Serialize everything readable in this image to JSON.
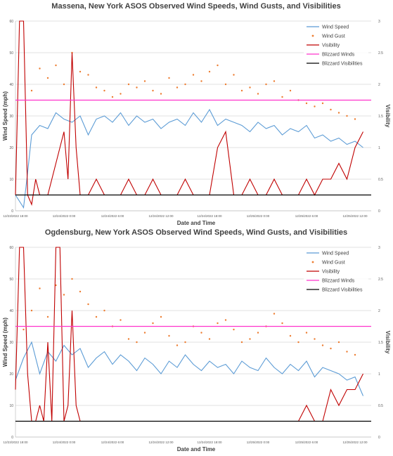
{
  "chart_data": [
    {
      "type": "line",
      "title": "Massena, New York ASOS Observed Wind Speeds, Wind Gusts, and Visibilities",
      "xlabel": "Date and Time",
      "ylabel": "Wind Speed (mph)",
      "y2label": "Visibility",
      "ylim": [
        0,
        60
      ],
      "y2lim": [
        0,
        3
      ],
      "xticks": [
        "12/23/2022 18:00",
        "12/24/2022 0:00",
        "12/24/2022 6:00",
        "12/24/2022 12:00",
        "12/24/2022 18:00",
        "12/25/2022 0:00",
        "12/25/2022 6:00",
        "12/25/2022 12:00"
      ],
      "yticks": [
        "0",
        "10",
        "20",
        "30",
        "40",
        "50",
        "60"
      ],
      "y2ticks": [
        "0",
        "0.5",
        "1",
        "1.5",
        "2",
        "2.5",
        "3"
      ],
      "grid": "horizontal",
      "legend_position": "top-right",
      "series": [
        {
          "name": "Wind Speed",
          "kind": "line",
          "color": "#5b9bd5",
          "x": [
            0,
            0.5,
            1,
            1.5,
            2,
            3,
            4,
            5,
            6,
            7,
            8,
            9,
            10,
            11,
            12,
            13,
            14,
            15,
            16,
            17,
            18,
            19,
            20,
            21,
            22,
            23,
            24,
            25,
            26,
            27,
            28,
            29,
            30,
            31,
            32,
            33,
            34,
            35,
            36,
            37,
            38,
            39,
            40,
            41,
            42,
            43
          ],
          "values": [
            5,
            3,
            1,
            12,
            24,
            27,
            26,
            31,
            29,
            28,
            30,
            24,
            29,
            30,
            28,
            31,
            27,
            30,
            28,
            29,
            26,
            28,
            29,
            27,
            31,
            28,
            32,
            27,
            29,
            28,
            27,
            25,
            28,
            26,
            27,
            24,
            26,
            25,
            27,
            23,
            24,
            22,
            23,
            21,
            22,
            20
          ]
        },
        {
          "name": "Wind Gust",
          "kind": "scatter",
          "color": "#ed7d31",
          "x": [
            2,
            3,
            4,
            5,
            6,
            7,
            8,
            9,
            10,
            11,
            12,
            13,
            14,
            15,
            16,
            17,
            18,
            19,
            20,
            21,
            22,
            23,
            24,
            25,
            26,
            27,
            28,
            29,
            30,
            31,
            32,
            33,
            34,
            35,
            36,
            37,
            38,
            39,
            40,
            41,
            42
          ],
          "values": [
            38,
            45,
            42,
            46,
            40,
            50,
            44,
            43,
            39,
            38,
            36,
            37,
            40,
            39,
            41,
            38,
            37,
            42,
            39,
            40,
            43,
            41,
            44,
            46,
            40,
            43,
            38,
            39,
            37,
            40,
            41,
            36,
            38,
            35,
            34,
            33,
            34,
            32,
            31,
            30,
            29
          ]
        },
        {
          "name": "Visibility",
          "kind": "line",
          "axis": "y2",
          "color": "#c00000",
          "x": [
            0,
            0.5,
            1,
            1.5,
            2,
            2.5,
            3,
            4,
            5,
            6,
            6.5,
            7,
            7.5,
            8,
            9,
            10,
            11,
            12,
            13,
            14,
            15,
            16,
            17,
            18,
            19,
            20,
            21,
            22,
            23,
            24,
            25,
            26,
            27,
            28,
            29,
            30,
            31,
            32,
            33,
            34,
            35,
            36,
            37,
            38,
            39,
            40,
            41,
            42,
            43
          ],
          "values": [
            0.25,
            3,
            3,
            0.25,
            0.1,
            0.5,
            0.25,
            0.25,
            0.75,
            1.25,
            0.5,
            2.5,
            1.0,
            0.25,
            0.25,
            0.5,
            0.25,
            0.25,
            0.25,
            0.5,
            0.25,
            0.25,
            0.5,
            0.25,
            0.25,
            0.25,
            0.5,
            0.25,
            0.25,
            0.25,
            1.0,
            1.25,
            0.25,
            0.25,
            0.5,
            0.25,
            0.25,
            0.5,
            0.25,
            0.25,
            0.25,
            0.5,
            0.25,
            0.5,
            0.5,
            0.75,
            0.5,
            1.0,
            1.25
          ]
        },
        {
          "name": "Blizzard Winds",
          "kind": "hline",
          "color": "#ff33cc",
          "value": 35
        },
        {
          "name": "Blizzard Visibilities",
          "kind": "hline",
          "axis": "y2",
          "color": "#000000",
          "value": 0.25
        }
      ]
    },
    {
      "type": "line",
      "title": "Ogdensburg, New York ASOS Observed Wind Speeds, Wind Gusts, and Visibilities",
      "xlabel": "Date and Time",
      "ylabel": "Wind Speed (mph)",
      "y2label": "Visibility",
      "ylim": [
        0,
        60
      ],
      "y2lim": [
        0,
        3
      ],
      "xticks": [
        "12/23/2022 18:00",
        "12/24/2022 0:00",
        "12/24/2022 6:00",
        "12/24/2022 12:00",
        "12/24/2022 18:00",
        "12/25/2022 0:00",
        "12/25/2022 6:00",
        "12/25/2022 12:00"
      ],
      "yticks": [
        "0",
        "10",
        "20",
        "30",
        "40",
        "50",
        "60"
      ],
      "y2ticks": [
        "0",
        "0.5",
        "1",
        "1.5",
        "2",
        "2.5",
        "3"
      ],
      "grid": "horizontal",
      "legend_position": "top-right",
      "series": [
        {
          "name": "Wind Speed",
          "kind": "line",
          "color": "#5b9bd5",
          "x": [
            0,
            1,
            2,
            3,
            4,
            5,
            6,
            7,
            8,
            9,
            10,
            11,
            12,
            13,
            14,
            15,
            16,
            17,
            18,
            19,
            20,
            21,
            22,
            23,
            24,
            25,
            26,
            27,
            28,
            29,
            30,
            31,
            32,
            33,
            34,
            35,
            36,
            37,
            38,
            39,
            40,
            41,
            42,
            43
          ],
          "values": [
            18,
            25,
            30,
            20,
            27,
            24,
            29,
            26,
            28,
            22,
            25,
            27,
            23,
            26,
            24,
            21,
            25,
            23,
            20,
            24,
            22,
            26,
            23,
            21,
            24,
            22,
            23,
            20,
            24,
            22,
            21,
            25,
            22,
            20,
            23,
            21,
            24,
            19,
            22,
            21,
            20,
            18,
            19,
            13
          ]
        },
        {
          "name": "Wind Gust",
          "kind": "scatter",
          "color": "#ed7d31",
          "x": [
            1,
            2,
            3,
            4,
            5,
            6,
            7,
            8,
            9,
            10,
            11,
            12,
            13,
            14,
            15,
            16,
            17,
            18,
            19,
            20,
            21,
            22,
            23,
            24,
            25,
            26,
            27,
            28,
            29,
            30,
            31,
            32,
            33,
            34,
            35,
            36,
            37,
            38,
            39,
            40,
            41,
            42
          ],
          "values": [
            34,
            40,
            47,
            38,
            48,
            45,
            50,
            46,
            42,
            38,
            40,
            35,
            37,
            31,
            30,
            33,
            36,
            38,
            32,
            29,
            30,
            35,
            33,
            31,
            36,
            37,
            34,
            30,
            31,
            33,
            35,
            39,
            36,
            32,
            30,
            33,
            31,
            29,
            28,
            30,
            27,
            26
          ]
        },
        {
          "name": "Visibility",
          "kind": "line",
          "axis": "y2",
          "color": "#c00000",
          "x": [
            0,
            0.5,
            1,
            1.5,
            2,
            2.5,
            3,
            3.5,
            4,
            4.5,
            5,
            5.5,
            6,
            6.5,
            7,
            7.5,
            8,
            9,
            10,
            15,
            20,
            25,
            30,
            35,
            36,
            37,
            38,
            39,
            40,
            41,
            42,
            43
          ],
          "values": [
            0.75,
            3,
            3,
            1.0,
            0.25,
            0.25,
            0.5,
            0.25,
            1.5,
            0.25,
            3,
            3,
            0.25,
            0.5,
            2.0,
            0.5,
            0.25,
            0.25,
            0.25,
            0.25,
            0.25,
            0.25,
            0.25,
            0.25,
            0.5,
            0.25,
            0.25,
            0.75,
            0.5,
            0.75,
            0.75,
            1.0
          ]
        },
        {
          "name": "Blizzard Winds",
          "kind": "hline",
          "color": "#ff33cc",
          "value": 35
        },
        {
          "name": "Blizzard Visibilities",
          "kind": "hline",
          "axis": "y2",
          "color": "#000000",
          "value": 0.25
        }
      ]
    }
  ]
}
